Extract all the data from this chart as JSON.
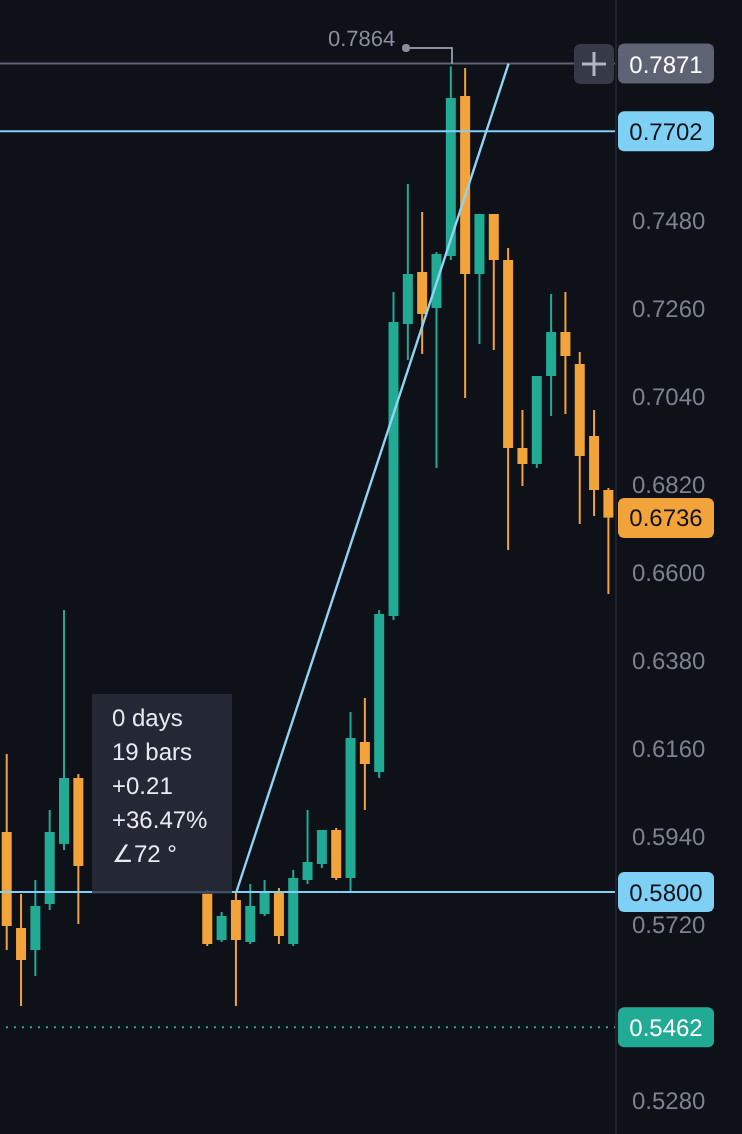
{
  "chart_data": {
    "type": "candlestick",
    "categories": [
      null,
      null,
      null,
      null,
      null,
      null,
      null,
      null,
      null,
      null,
      null,
      null,
      null,
      null,
      null,
      null,
      null,
      null,
      null,
      null,
      null,
      null,
      null,
      null,
      null,
      null,
      null,
      null,
      null,
      null,
      null,
      null,
      null,
      null,
      null,
      null,
      null,
      null,
      null,
      null,
      null,
      null,
      null
    ],
    "ohlc": [
      [
        0.595,
        0.6145,
        0.5655,
        0.5715
      ],
      [
        0.571,
        0.5795,
        0.5515,
        0.563
      ],
      [
        0.5655,
        0.583,
        0.559,
        0.5765
      ],
      [
        0.577,
        0.6005,
        0.5755,
        0.595
      ],
      [
        0.592,
        0.6505,
        0.5905,
        0.6085
      ],
      [
        0.6085,
        0.6095,
        0.572,
        0.5865
      ],
      null,
      null,
      null,
      null,
      null,
      null,
      null,
      null,
      [
        0.58,
        0.5805,
        0.5665,
        0.567
      ],
      [
        0.568,
        0.575,
        0.5675,
        0.574
      ],
      [
        0.578,
        0.58,
        0.5515,
        0.568
      ],
      [
        0.5675,
        0.582,
        0.567,
        0.5765
      ],
      [
        0.5745,
        0.583,
        0.574,
        0.58
      ],
      [
        0.58,
        0.581,
        0.567,
        0.569
      ],
      [
        0.567,
        0.5855,
        0.5665,
        0.5835
      ],
      [
        0.583,
        0.6005,
        0.582,
        0.5875
      ],
      [
        0.587,
        0.5955,
        0.586,
        0.5955
      ],
      [
        0.5955,
        0.596,
        0.583,
        0.5835
      ],
      [
        0.5835,
        0.625,
        0.58,
        0.6185
      ],
      [
        0.6175,
        0.6285,
        0.6005,
        0.612
      ],
      [
        0.61,
        0.6505,
        0.6085,
        0.6495
      ],
      [
        0.649,
        0.73,
        0.648,
        0.7225
      ],
      [
        0.722,
        0.757,
        0.713,
        0.7345
      ],
      [
        0.735,
        0.75,
        0.7145,
        0.7245
      ],
      [
        0.726,
        0.74,
        0.686,
        0.7395
      ],
      [
        0.739,
        0.7864,
        0.738,
        0.7785
      ],
      [
        0.779,
        0.786,
        0.7035,
        0.7345
      ],
      [
        0.7345,
        0.7495,
        0.717,
        0.7495
      ],
      [
        0.7495,
        0.7495,
        0.7155,
        0.738
      ],
      [
        0.738,
        0.741,
        0.6655,
        0.691
      ],
      [
        0.691,
        0.7005,
        0.6815,
        0.687
      ],
      [
        0.687,
        0.709,
        0.686,
        0.709
      ],
      [
        0.709,
        0.7295,
        0.699,
        0.72
      ],
      [
        0.72,
        0.73,
        0.6995,
        0.714
      ],
      [
        0.712,
        0.715,
        0.672,
        0.689
      ],
      [
        0.694,
        0.7005,
        0.674,
        0.6805
      ],
      [
        0.6805,
        0.681,
        0.6545,
        0.6736
      ]
    ],
    "colors": [
      "#f2a33a",
      "#f2a33a",
      "#22ab94",
      "#22ab94",
      "#22ab94",
      "#f2a33a",
      null,
      null,
      null,
      null,
      null,
      null,
      null,
      null,
      "#f2a33a",
      "#22ab94",
      "#f2a33a",
      "#22ab94",
      "#22ab94",
      "#f2a33a",
      "#22ab94",
      "#22ab94",
      "#22ab94",
      "#f2a33a",
      "#22ab94",
      "#f2a33a",
      "#22ab94",
      "#22ab94",
      "#22ab94",
      "#f2a33a",
      "#22ab94",
      "#22ab94",
      "#f2a33a",
      "#22ab94",
      "#f2a33a",
      "#f2a33a",
      "#f2a33a",
      "#22ab94",
      "#22ab94",
      "#f2a33a",
      "#f2a33a",
      "#f2a33a",
      "#f2a33a"
    ],
    "series": [
      {
        "type": "line",
        "color": "#8fd3f5",
        "values": [
          null,
          null,
          null,
          null,
          null,
          null,
          null,
          null,
          null,
          null,
          null,
          null,
          null,
          null,
          null,
          null,
          0.58,
          null,
          null,
          null,
          null,
          null,
          null,
          null,
          null,
          null,
          null,
          null,
          null,
          null,
          null,
          null,
          null,
          null,
          null,
          0.7871,
          null,
          null,
          null,
          null,
          null,
          null,
          null
        ]
      }
    ],
    "ylim": [
      0.5195,
      0.803
    ],
    "yticks": [
      {
        "value": 0.528,
        "label": "0.5280"
      },
      {
        "value": 0.572,
        "label": "0.5720"
      },
      {
        "value": 0.594,
        "label": "0.5940"
      },
      {
        "value": 0.616,
        "label": "0.6160"
      },
      {
        "value": 0.638,
        "label": "0.6380"
      },
      {
        "value": 0.66,
        "label": "0.6600"
      },
      {
        "value": 0.682,
        "label": "0.6820"
      },
      {
        "value": 0.704,
        "label": "0.7040"
      },
      {
        "value": 0.726,
        "label": "0.7260"
      },
      {
        "value": 0.748,
        "label": "0.7480"
      }
    ],
    "tick_labels": "y",
    "ref_lines": [
      {
        "axis": "y",
        "value": 0.7871,
        "label": "0.7871",
        "color": "#5d6373",
        "line_style": "solid"
      },
      {
        "axis": "y",
        "value": 0.7702,
        "label": "0.7702",
        "color": "#7fd0f5",
        "line_style": "solid"
      },
      {
        "axis": "y",
        "value": 0.58,
        "label": "0.5800",
        "color": "#7fd0f5",
        "line_style": "solid"
      },
      {
        "axis": "y",
        "value": 0.5462,
        "label": "0.5462",
        "color": "#22ab94",
        "line_style": "dotted"
      }
    ],
    "annotations": [
      "0 days",
      "19 bars",
      "+0.21",
      "+36.47%",
      "∠72 °",
      "0.7864",
      "0.6736"
    ]
  }
}
